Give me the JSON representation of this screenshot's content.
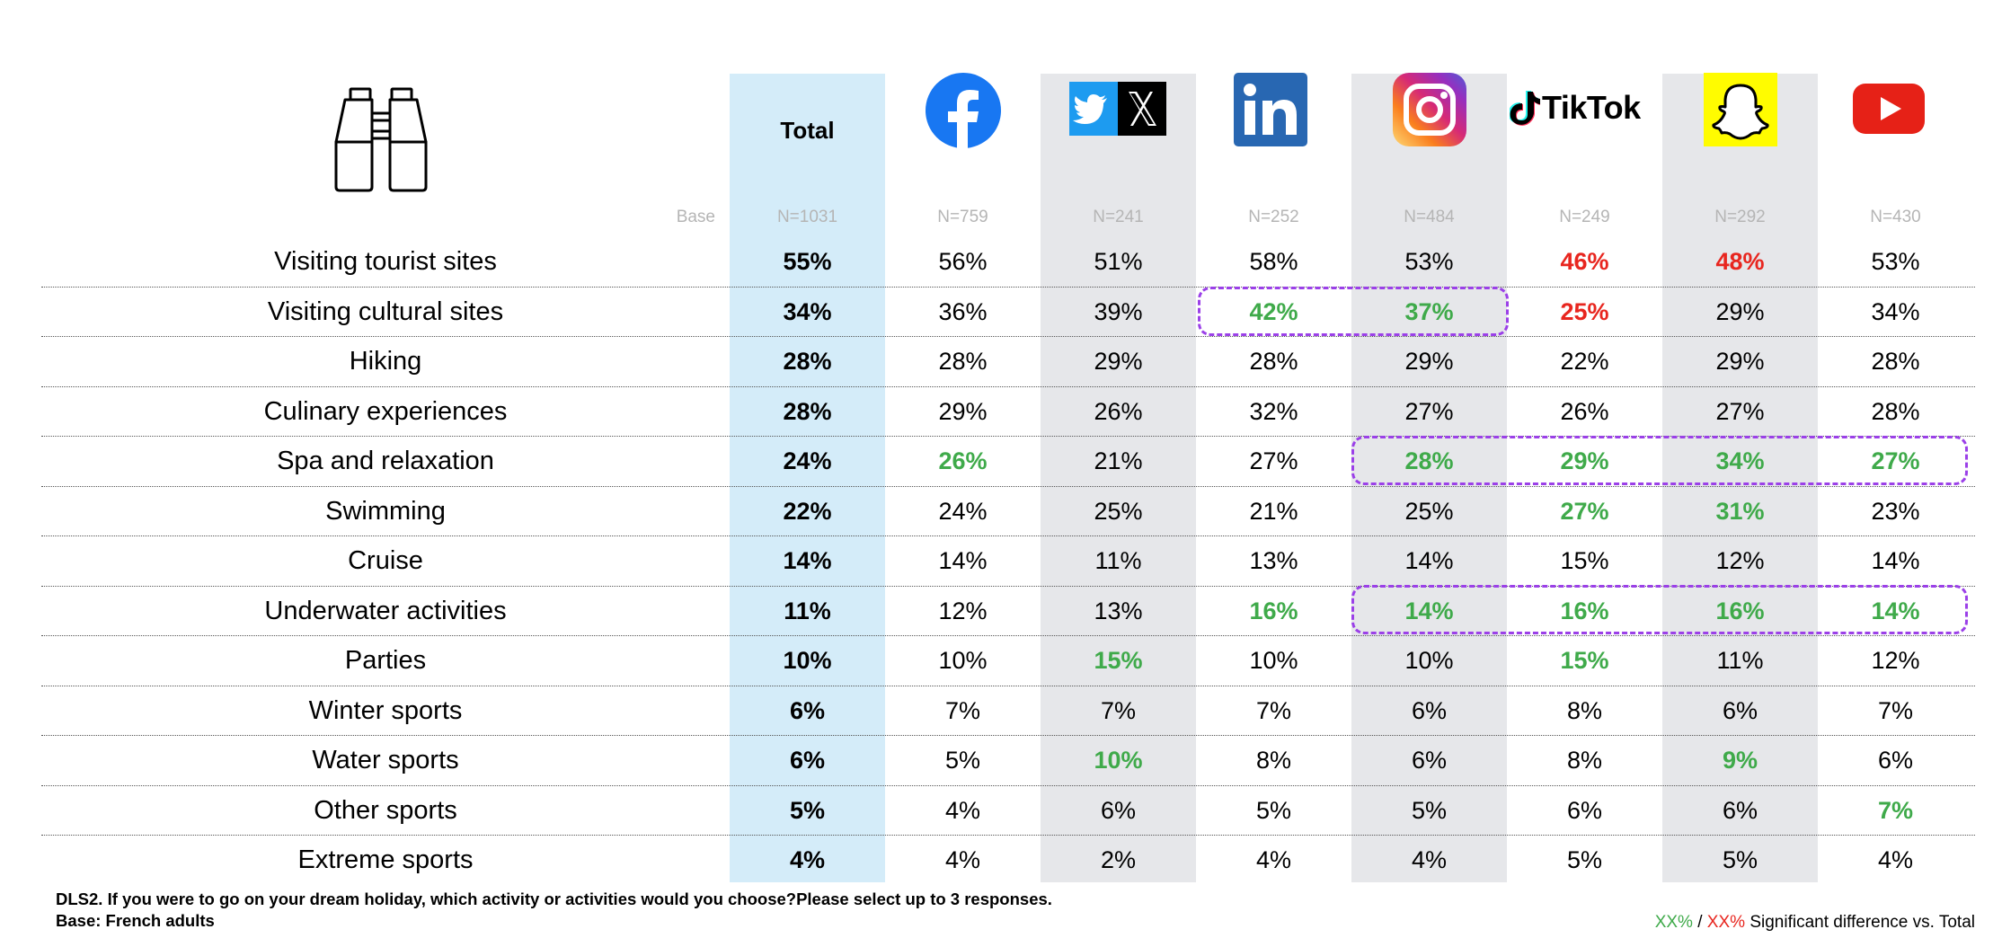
{
  "base_label": "Base",
  "columns": [
    {
      "key": "total",
      "header": "Total",
      "base": "N=1031",
      "logo": "total-header"
    },
    {
      "key": "facebook",
      "base": "N=759",
      "logo": "facebook-icon"
    },
    {
      "key": "twitter_x",
      "base": "N=241",
      "logo": "twitter-x-icon"
    },
    {
      "key": "linkedin",
      "base": "N=252",
      "logo": "linkedin-icon"
    },
    {
      "key": "instagram",
      "base": "N=484",
      "logo": "instagram-icon"
    },
    {
      "key": "tiktok",
      "base": "N=249",
      "logo": "tiktok-icon",
      "logo_text": "TikTok"
    },
    {
      "key": "snapchat",
      "base": "N=292",
      "logo": "snapchat-icon"
    },
    {
      "key": "youtube",
      "base": "N=430",
      "logo": "youtube-icon"
    }
  ],
  "header_icon": "binoculars-icon",
  "chart_data": {
    "type": "table",
    "columns": [
      "Total",
      "Facebook",
      "Twitter/X",
      "LinkedIn",
      "Instagram",
      "TikTok",
      "Snapchat",
      "YouTube"
    ],
    "bases": [
      "N=1031",
      "N=759",
      "N=241",
      "N=252",
      "N=484",
      "N=249",
      "N=292",
      "N=430"
    ],
    "rows": [
      {
        "label": "Visiting tourist sites",
        "values": [
          "55%",
          "56%",
          "51%",
          "58%",
          "53%",
          "46%",
          "48%",
          "53%"
        ],
        "sig": [
          "",
          "",
          "",
          "",
          "",
          "down",
          "down",
          ""
        ]
      },
      {
        "label": "Visiting cultural sites",
        "values": [
          "34%",
          "36%",
          "39%",
          "42%",
          "37%",
          "25%",
          "29%",
          "34%"
        ],
        "sig": [
          "",
          "",
          "",
          "up",
          "up",
          "down",
          "",
          ""
        ]
      },
      {
        "label": "Hiking",
        "values": [
          "28%",
          "28%",
          "29%",
          "28%",
          "29%",
          "22%",
          "29%",
          "28%"
        ],
        "sig": [
          "",
          "",
          "",
          "",
          "",
          "",
          "",
          ""
        ]
      },
      {
        "label": "Culinary experiences",
        "values": [
          "28%",
          "29%",
          "26%",
          "32%",
          "27%",
          "26%",
          "27%",
          "28%"
        ],
        "sig": [
          "",
          "",
          "",
          "",
          "",
          "",
          "",
          ""
        ]
      },
      {
        "label": "Spa and relaxation",
        "values": [
          "24%",
          "26%",
          "21%",
          "27%",
          "28%",
          "29%",
          "34%",
          "27%"
        ],
        "sig": [
          "",
          "up",
          "",
          "",
          "up",
          "up",
          "up",
          "up"
        ]
      },
      {
        "label": "Swimming",
        "values": [
          "22%",
          "24%",
          "25%",
          "21%",
          "25%",
          "27%",
          "31%",
          "23%"
        ],
        "sig": [
          "",
          "",
          "",
          "",
          "",
          "up",
          "up",
          ""
        ]
      },
      {
        "label": "Cruise",
        "values": [
          "14%",
          "14%",
          "11%",
          "13%",
          "14%",
          "15%",
          "12%",
          "14%"
        ],
        "sig": [
          "",
          "",
          "",
          "",
          "",
          "",
          "",
          ""
        ]
      },
      {
        "label": "Underwater activities",
        "values": [
          "11%",
          "12%",
          "13%",
          "16%",
          "14%",
          "16%",
          "16%",
          "14%"
        ],
        "sig": [
          "",
          "",
          "",
          "up",
          "up",
          "up",
          "up",
          "up"
        ]
      },
      {
        "label": "Parties",
        "values": [
          "10%",
          "10%",
          "15%",
          "10%",
          "10%",
          "15%",
          "11%",
          "12%"
        ],
        "sig": [
          "",
          "",
          "up",
          "",
          "",
          "up",
          "",
          ""
        ]
      },
      {
        "label": "Winter sports",
        "values": [
          "6%",
          "7%",
          "7%",
          "7%",
          "6%",
          "8%",
          "6%",
          "7%"
        ],
        "sig": [
          "",
          "",
          "",
          "",
          "",
          "",
          "",
          ""
        ]
      },
      {
        "label": "Water sports",
        "values": [
          "6%",
          "5%",
          "10%",
          "8%",
          "6%",
          "8%",
          "9%",
          "6%"
        ],
        "sig": [
          "",
          "",
          "up",
          "",
          "",
          "",
          "up",
          ""
        ]
      },
      {
        "label": "Other sports",
        "values": [
          "5%",
          "4%",
          "6%",
          "5%",
          "5%",
          "6%",
          "6%",
          "7%"
        ],
        "sig": [
          "",
          "",
          "",
          "",
          "",
          "",
          "",
          "up"
        ]
      },
      {
        "label": "Extreme sports",
        "values": [
          "4%",
          "4%",
          "2%",
          "4%",
          "4%",
          "5%",
          "5%",
          "4%"
        ],
        "sig": [
          "",
          "",
          "",
          "",
          "",
          "",
          "",
          ""
        ]
      }
    ],
    "colors": {
      "up": "#3faa4a",
      "down": "#e8261f",
      "highlight": "#9b40e8",
      "total_bg": "#d4ecf9",
      "alt_bg": "#e6e7ea"
    }
  },
  "footnote": {
    "question": "DLS2. If you were to go on your dream holiday, which activity or activities would you choose?Please select up to 3 responses.",
    "base": "Base: French adults"
  },
  "legend": {
    "green": "XX%",
    "separator": " / ",
    "red": "XX%",
    "text": " Significant difference vs. Total"
  }
}
